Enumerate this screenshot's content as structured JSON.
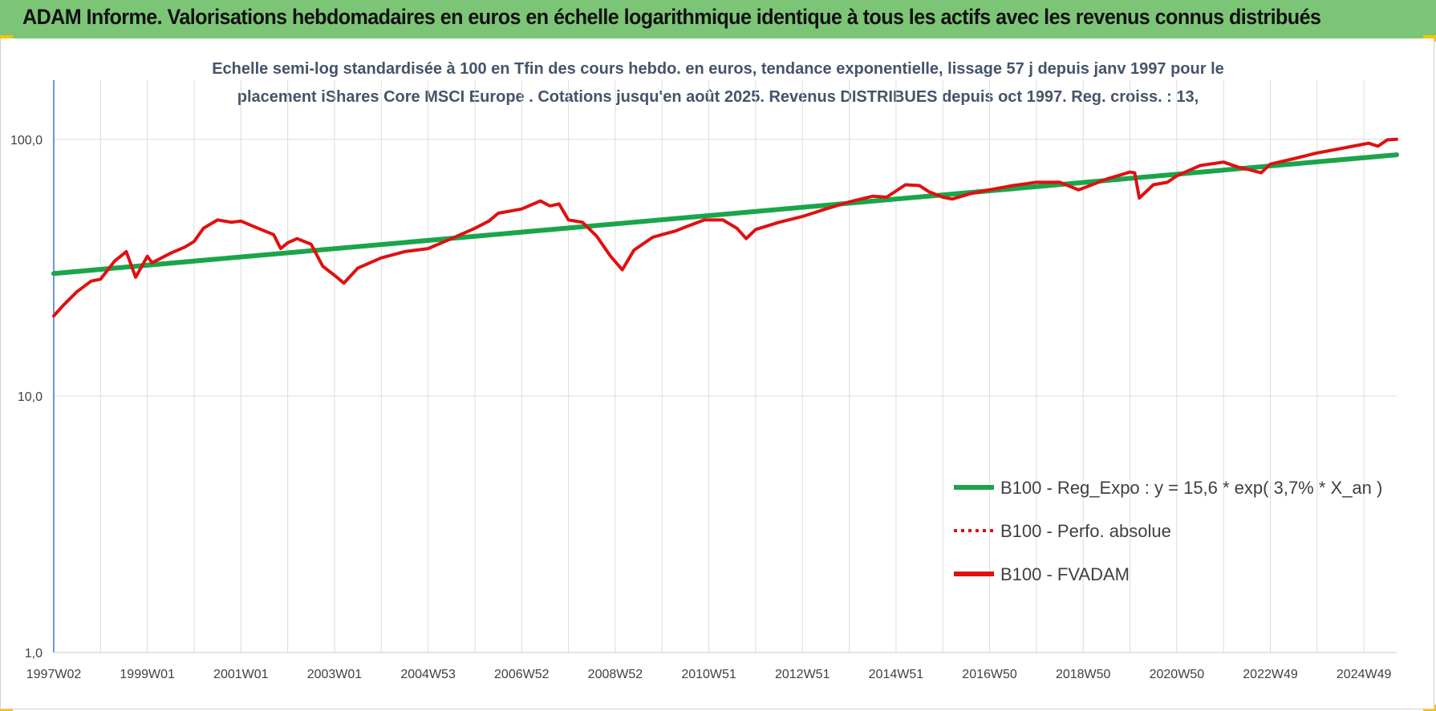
{
  "header": {
    "title": "ADAM Informe. Valorisations hebdomadaires en euros en échelle logarithmique identique à tous les actifs avec les revenus connus distribués",
    "background_color": "#7cc576",
    "corner_color": "#f5c400"
  },
  "chart_data": {
    "type": "line",
    "title_lines": [
      "Echelle semi-log standardisée à 100 en Tfin des cours hebdo. en euros, tendance exponentielle, lissage 57 j depuis janv 1997 pour le",
      "placement iShares Core MSCI Europe . Cotations jusqu'en août 2025. Revenus DISTRIBUES depuis oct 1997. Reg. croiss. : 13,"
    ],
    "y_scale": "log",
    "ylim": [
      1,
      170
    ],
    "y_ticks": [
      {
        "value": 1,
        "label": "1,0"
      },
      {
        "value": 10,
        "label": "10,0"
      },
      {
        "value": 100,
        "label": "100,0"
      }
    ],
    "xlim": [
      1997.0,
      2025.7
    ],
    "x_ticks": [
      {
        "x": 1997.0,
        "label": "1997W02"
      },
      {
        "x": 1999.0,
        "label": "1999W01"
      },
      {
        "x": 2001.0,
        "label": "2001W01"
      },
      {
        "x": 2003.0,
        "label": "2003W01"
      },
      {
        "x": 2005.0,
        "label": "2004W53"
      },
      {
        "x": 2007.0,
        "label": "2006W52"
      },
      {
        "x": 2009.0,
        "label": "2008W52"
      },
      {
        "x": 2011.0,
        "label": "2010W51"
      },
      {
        "x": 2013.0,
        "label": "2012W51"
      },
      {
        "x": 2015.0,
        "label": "2014W51"
      },
      {
        "x": 2017.0,
        "label": "2016W50"
      },
      {
        "x": 2019.0,
        "label": "2018W50"
      },
      {
        "x": 2021.0,
        "label": "2020W50"
      },
      {
        "x": 2023.0,
        "label": "2022W49"
      },
      {
        "x": 2025.0,
        "label": "2024W49"
      }
    ],
    "grid": true,
    "legend_position": "bottom-right",
    "series": [
      {
        "name": "B100 - Reg_Expo : y = 15,6 * exp( 3,7% *  X_an )",
        "color": "#1aa54b",
        "style": "solid",
        "x": [
          1997.0,
          2025.7
        ],
        "y": [
          30.0,
          87.0
        ]
      },
      {
        "name": "B100 - Perfo. absolue",
        "color": "#e01010",
        "style": "dotted",
        "x": [],
        "y": []
      },
      {
        "name": "B100 - FVADAM",
        "color": "#e01010",
        "style": "solid",
        "x": [
          1997.0,
          1997.2,
          1997.5,
          1997.8,
          1998.0,
          1998.3,
          1998.55,
          1998.75,
          1999.0,
          1999.1,
          1999.5,
          1999.8,
          2000.0,
          2000.2,
          2000.5,
          2000.8,
          2001.0,
          2001.3,
          2001.7,
          2001.85,
          2002.0,
          2002.2,
          2002.5,
          2002.75,
          2003.0,
          2003.2,
          2003.5,
          2004.0,
          2004.5,
          2005.0,
          2005.5,
          2006.0,
          2006.3,
          2006.5,
          2007.0,
          2007.4,
          2007.6,
          2007.8,
          2008.0,
          2008.3,
          2008.6,
          2008.9,
          2009.15,
          2009.4,
          2009.8,
          2010.0,
          2010.3,
          2010.5,
          2010.9,
          2011.3,
          2011.6,
          2011.8,
          2012.0,
          2012.5,
          2013.0,
          2013.5,
          2014.0,
          2014.5,
          2014.8,
          2015.2,
          2015.5,
          2015.7,
          2016.0,
          2016.2,
          2016.6,
          2017.0,
          2017.5,
          2018.0,
          2018.5,
          2018.9,
          2019.0,
          2019.5,
          2020.0,
          2020.1,
          2020.2,
          2020.5,
          2020.8,
          2021.0,
          2021.5,
          2022.0,
          2022.3,
          2022.5,
          2022.8,
          2023.0,
          2023.5,
          2024.0,
          2024.5,
          2024.9,
          2025.1,
          2025.3,
          2025.5,
          2025.7
        ],
        "y": [
          20.5,
          22.5,
          25.5,
          28.0,
          28.5,
          33.5,
          36.5,
          29.0,
          35.0,
          33.0,
          36.0,
          38.0,
          40.0,
          45.0,
          48.5,
          47.5,
          48.0,
          45.5,
          42.5,
          37.5,
          39.5,
          41.0,
          39.0,
          32.0,
          29.5,
          27.5,
          31.5,
          34.5,
          36.5,
          37.5,
          41.0,
          45.0,
          48.0,
          51.5,
          53.5,
          57.5,
          55.0,
          56.0,
          48.5,
          47.5,
          42.0,
          35.0,
          31.0,
          37.0,
          41.5,
          42.5,
          44.0,
          45.5,
          48.5,
          48.5,
          45.0,
          41.0,
          44.5,
          47.5,
          50.0,
          53.5,
          57.0,
          60.0,
          59.5,
          66.5,
          66.0,
          62.5,
          59.5,
          58.5,
          61.5,
          63.5,
          66.0,
          68.0,
          68.0,
          63.5,
          64.5,
          70.0,
          74.5,
          74.0,
          59.0,
          66.5,
          68.0,
          72.0,
          79.0,
          81.5,
          78.0,
          76.5,
          74.0,
          80.0,
          84.0,
          88.5,
          92.0,
          95.0,
          96.5,
          94.0,
          99.5,
          100.0
        ]
      }
    ]
  }
}
